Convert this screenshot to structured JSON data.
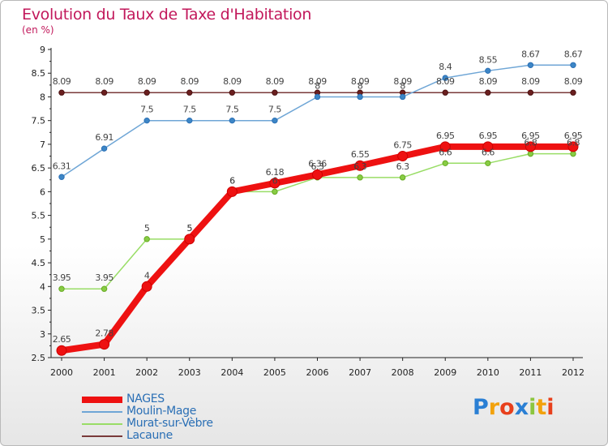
{
  "chart_data": {
    "type": "line",
    "title": "Evolution du Taux de Taxe d'Habitation",
    "ylabel": "(en %)",
    "xlabel": "",
    "x": [
      "2000",
      "2001",
      "2002",
      "2003",
      "2004",
      "2005",
      "2006",
      "2007",
      "2008",
      "2009",
      "2010",
      "2011",
      "2012"
    ],
    "ylim": [
      2.5,
      9
    ],
    "yticks": [
      "2.5",
      "3",
      "3.5",
      "4",
      "4.5",
      "5",
      "5.5",
      "6",
      "6.5",
      "7",
      "7.5",
      "8",
      "8.5",
      "9"
    ],
    "grid": false,
    "legend_position": "bottom-left",
    "series": [
      {
        "name": "NAGES",
        "color": "#ee1111",
        "values": [
          2.65,
          2.78,
          4,
          5,
          6,
          6.18,
          6.36,
          6.55,
          6.75,
          6.95,
          6.95,
          6.95,
          6.95
        ],
        "labels": [
          "2.65",
          "2.78",
          "4",
          "5",
          "6",
          "6.18",
          "6.36",
          "6.55",
          "6.75",
          "6.95",
          "6.95",
          "6.95",
          "6.95"
        ]
      },
      {
        "name": "Moulin-Mage",
        "color": "#6fa6d6",
        "values": [
          6.31,
          6.91,
          7.5,
          7.5,
          7.5,
          7.5,
          8,
          8,
          8,
          8.4,
          8.55,
          8.67,
          8.67
        ],
        "labels": [
          "6.31",
          "6.91",
          "7.5",
          "7.5",
          "7.5",
          "7.5",
          "8",
          "8",
          "8",
          "8.4",
          "8.55",
          "8.67",
          "8.67"
        ]
      },
      {
        "name": "Murat-sur-Vèbre",
        "color": "#99dd66",
        "values": [
          3.95,
          3.95,
          5,
          5,
          6,
          6,
          6.3,
          6.3,
          6.3,
          6.6,
          6.6,
          6.8,
          6.8
        ],
        "labels": [
          "3.95",
          "3.95",
          "5",
          "5",
          "6",
          "6",
          "6.3",
          "6.3",
          "6.3",
          "6.6",
          "6.6",
          "6.8",
          "6.8"
        ]
      },
      {
        "name": "Lacaune",
        "color": "#7a3a3a",
        "values": [
          8.09,
          8.09,
          8.09,
          8.09,
          8.09,
          8.09,
          8.09,
          8.09,
          8.09,
          8.09,
          8.09,
          8.09,
          8.09
        ],
        "labels": [
          "8.09",
          "8.09",
          "8.09",
          "8.09",
          "8.09",
          "8.09",
          "8.09",
          "8.09",
          "8.09",
          "8.09",
          "8.09",
          "8.09",
          "8.09"
        ]
      }
    ]
  },
  "logo": {
    "letters": [
      "P",
      "r",
      "o",
      "x",
      "i",
      "t",
      "i"
    ],
    "colors": [
      "#2a7fd4",
      "#f2a20c",
      "#e8401c",
      "#2a7fd4",
      "#8cc63f",
      "#f2a20c",
      "#e8401c"
    ]
  }
}
